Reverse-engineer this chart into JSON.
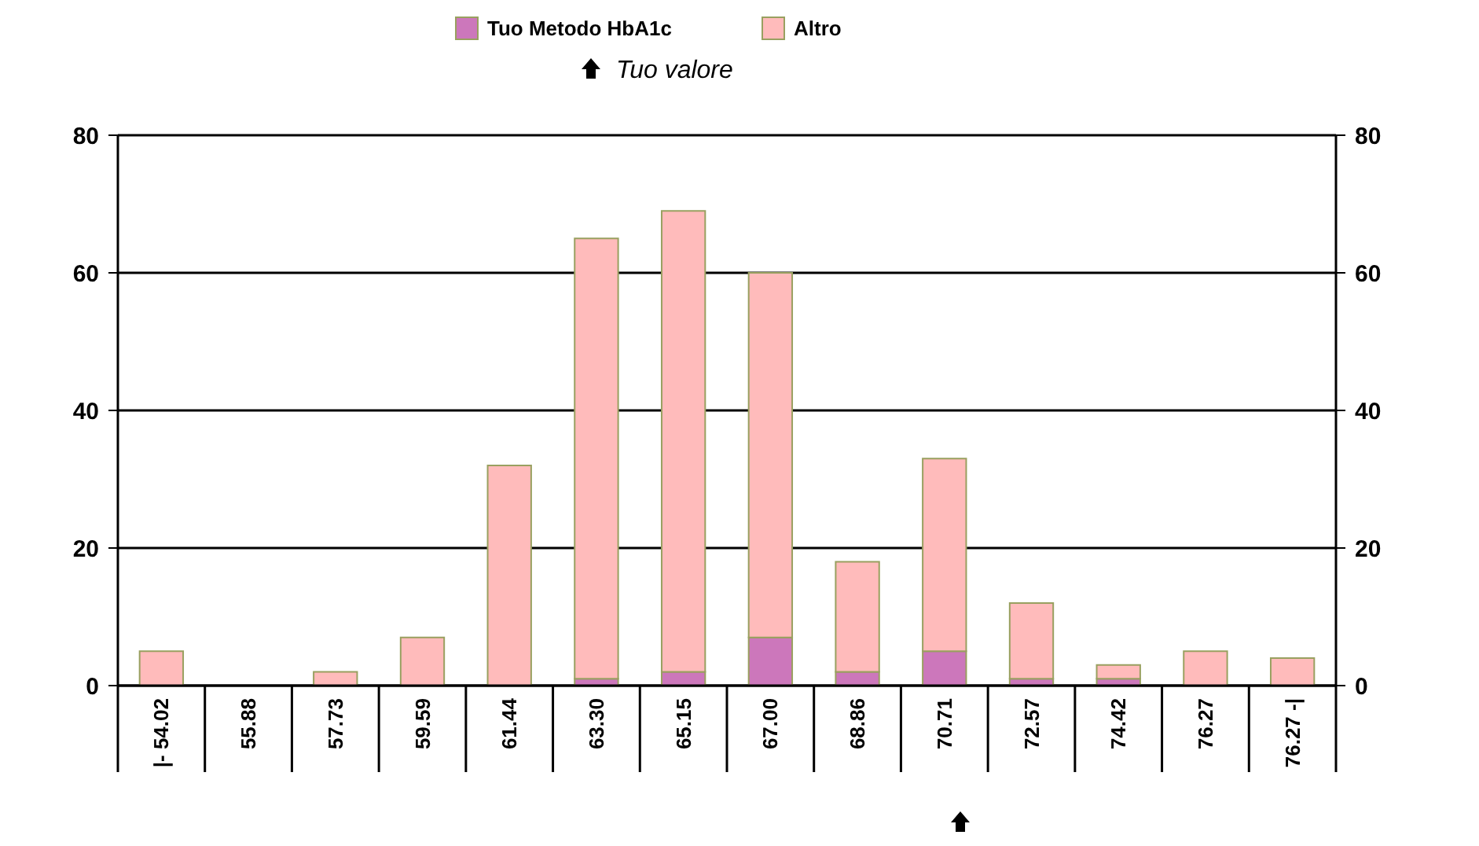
{
  "chart_data": {
    "type": "bar",
    "stacked": true,
    "categories": [
      "|- 54.02",
      "55.88",
      "57.73",
      "59.59",
      "61.44",
      "63.30",
      "65.15",
      "67.00",
      "68.86",
      "70.71",
      "72.57",
      "74.42",
      "76.27",
      "76.27 -|"
    ],
    "series": [
      {
        "name": "Tuo Metodo HbA1c",
        "color": "#cc77bb",
        "values": [
          0,
          0,
          0,
          0,
          0,
          1,
          2,
          7,
          2,
          5,
          1,
          1,
          0,
          0
        ]
      },
      {
        "name": "Altro",
        "color": "#ffbbbb",
        "values": [
          5,
          0,
          2,
          7,
          32,
          64,
          67,
          53,
          16,
          28,
          11,
          2,
          5,
          4
        ]
      }
    ],
    "ylim": [
      0,
      80
    ],
    "yticks": [
      0,
      20,
      40,
      60,
      80
    ],
    "y2lim": [
      0,
      80
    ],
    "y2ticks": [
      0,
      20,
      40,
      60,
      80
    ],
    "grid": "y",
    "legend": "top",
    "annotations": [
      "Tuo valore"
    ]
  }
}
